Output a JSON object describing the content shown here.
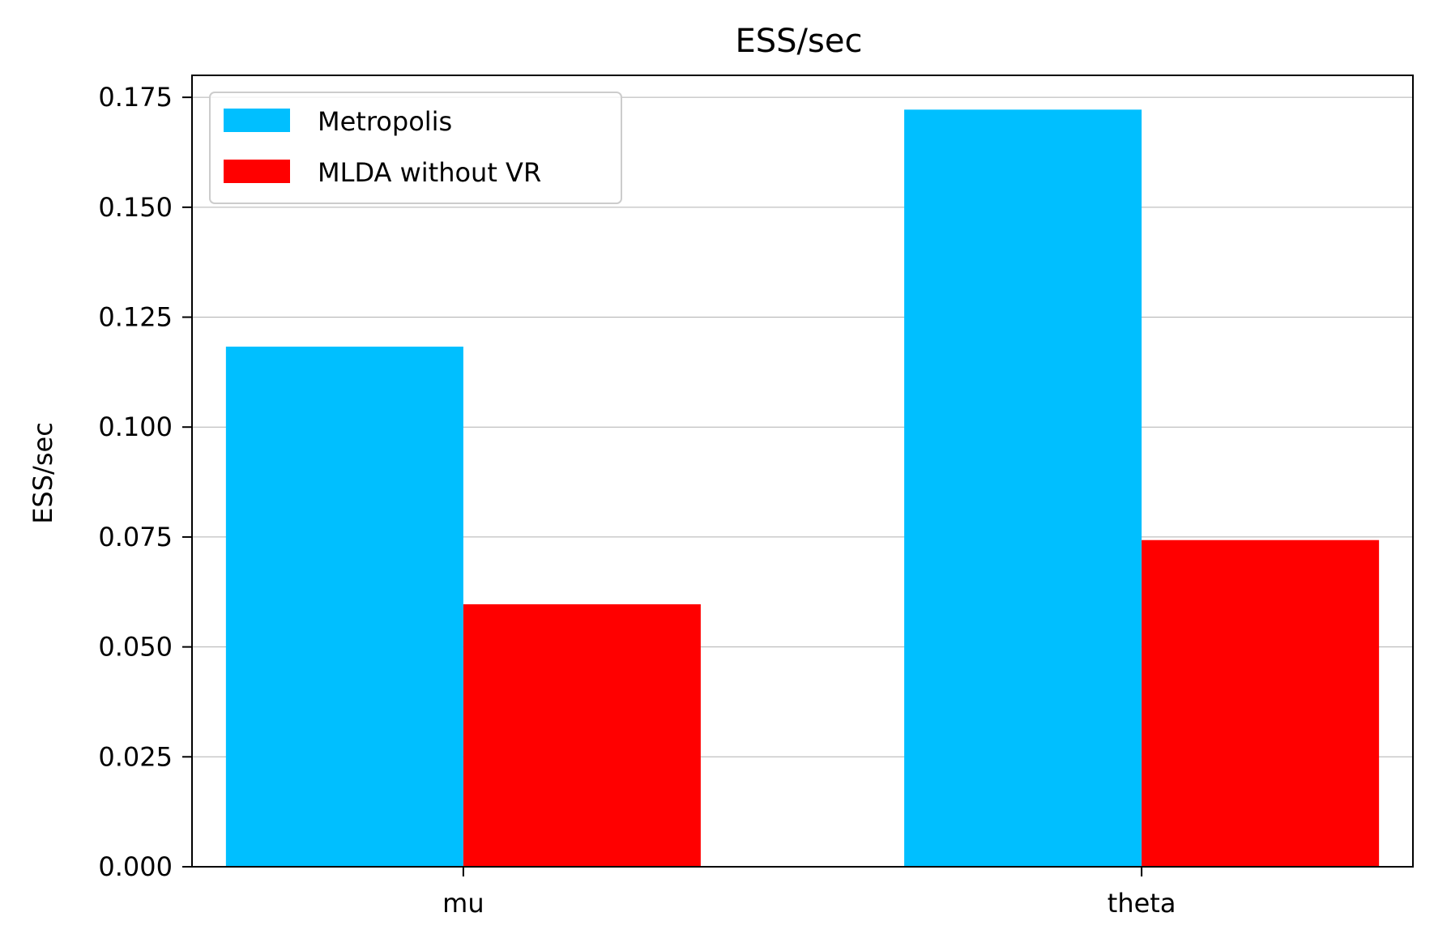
{
  "chart_data": {
    "type": "bar",
    "title": "ESS/sec",
    "xlabel": "",
    "ylabel": "ESS/sec",
    "categories": [
      "mu",
      "theta"
    ],
    "series": [
      {
        "name": "Metropolis",
        "values": [
          0.1183,
          0.1722
        ],
        "color": "#00bfff"
      },
      {
        "name": "MLDA without VR",
        "values": [
          0.0597,
          0.0743
        ],
        "color": "#ff0000"
      }
    ],
    "ylim": [
      0,
      0.18
    ],
    "yticks": [
      "0.000",
      "0.025",
      "0.050",
      "0.075",
      "0.100",
      "0.125",
      "0.150",
      "0.175"
    ],
    "grid": "y",
    "legend_position": "top-left"
  }
}
